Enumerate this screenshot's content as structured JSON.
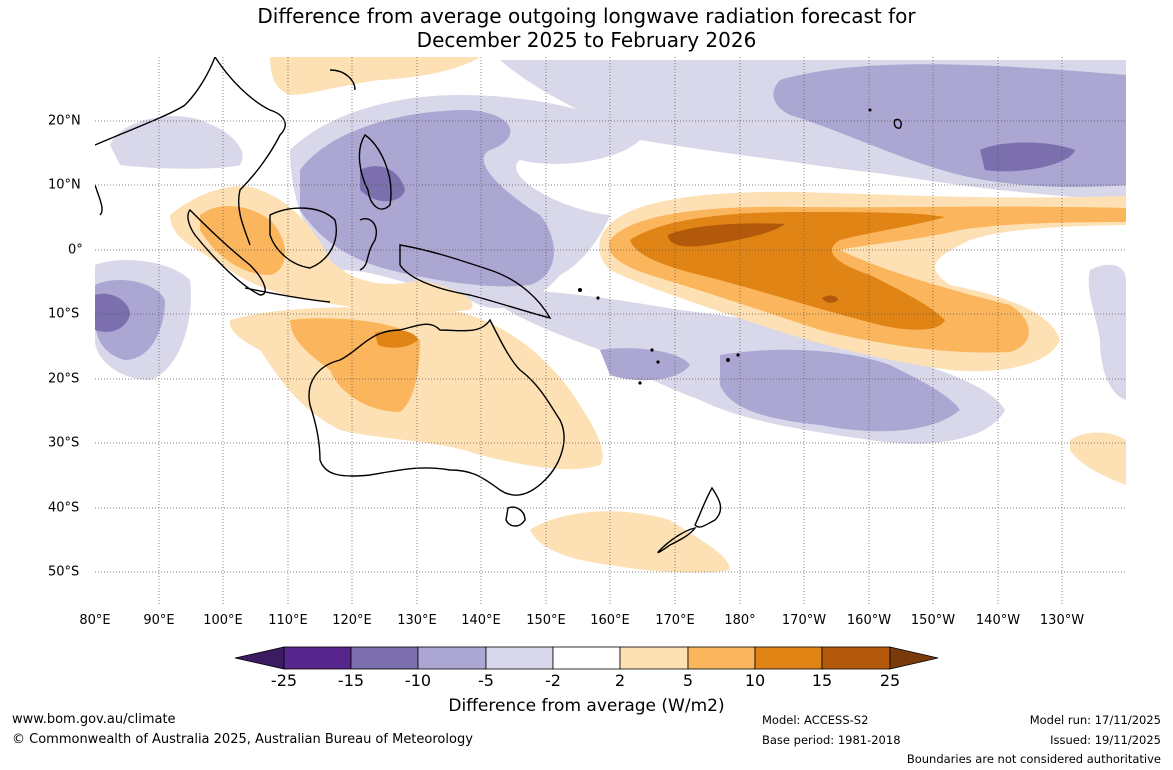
{
  "title": {
    "line1": "Difference from average outgoing longwave radiation forecast for",
    "line2": "December 2025 to February 2026"
  },
  "axes": {
    "lon_labels": [
      "80°E",
      "90°E",
      "100°E",
      "110°E",
      "120°E",
      "130°E",
      "140°E",
      "150°E",
      "160°E",
      "170°E",
      "180°",
      "170°W",
      "160°W",
      "150°W",
      "140°W",
      "130°W"
    ],
    "lat_labels": [
      "20°N",
      "10°N",
      "0°",
      "10°S",
      "20°S",
      "30°S",
      "40°S",
      "50°S"
    ]
  },
  "colorbar": {
    "labels": [
      "-25",
      "-15",
      "-10",
      "-5",
      "-2",
      "2",
      "5",
      "10",
      "15",
      "25"
    ],
    "colors": [
      "#3b1c60",
      "#57268c",
      "#7b6fae",
      "#aba6d2",
      "#d9d8ea",
      "#ffffff",
      "#fde0b4",
      "#fbb65d",
      "#e08415",
      "#b3590c",
      "#7a3a0a"
    ],
    "title": "Difference from average (W/m2)"
  },
  "footer": {
    "website": "www.bom.gov.au/climate",
    "copyright": "© Commonwealth of Australia 2025, Australian Bureau of Meteorology",
    "model": "Model: ACCESS-S2",
    "base_period": "Base period: 1981-2018",
    "model_run": "Model run: 17/11/2025",
    "issued": "Issued: 19/11/2025",
    "disclaimer": "Boundaries are not considered authoritative"
  }
}
